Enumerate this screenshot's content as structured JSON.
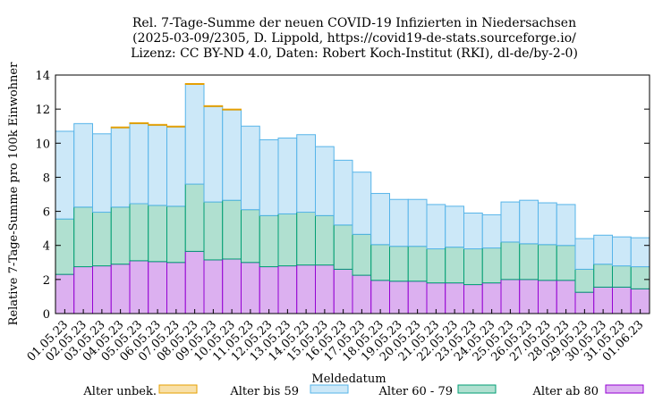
{
  "chart_data": {
    "type": "bar",
    "stacked": true,
    "title": [
      "Rel. 7-Tage-Summe der neuen COVID-19 Infizierten in Niedersachsen",
      "(2025-03-09/2305, D. Lippold, https://covid19-de-stats.sourceforge.io/",
      "Lizenz: CC BY-ND 4.0, Daten: Robert Koch-Institut (RKI), dl-de/by-2-0)"
    ],
    "xlabel": "Meldedatum",
    "ylabel": "Relative 7-Tage-Summe pro 100k Einwohner",
    "ylim": [
      0,
      14
    ],
    "yticks": [
      0,
      2,
      4,
      6,
      8,
      10,
      12,
      14
    ],
    "grid": false,
    "legend_position": "bottom",
    "categories": [
      "01.05.23",
      "02.05.23",
      "03.05.23",
      "04.05.23",
      "05.05.23",
      "06.05.23",
      "07.05.23",
      "08.05.23",
      "09.05.23",
      "10.05.23",
      "11.05.23",
      "12.05.23",
      "13.05.23",
      "14.05.23",
      "15.05.23",
      "16.05.23",
      "17.05.23",
      "18.05.23",
      "19.05.23",
      "20.05.23",
      "21.05.23",
      "22.05.23",
      "23.05.23",
      "24.05.23",
      "25.05.23",
      "26.05.23",
      "27.05.23",
      "28.05.23",
      "29.05.23",
      "30.05.23",
      "31.05.23",
      "01.06.23"
    ],
    "series": [
      {
        "name": "Alter ab 80",
        "color": "#dcb0f0",
        "stroke": "#9400d3",
        "values": [
          2.3,
          2.75,
          2.8,
          2.9,
          3.1,
          3.05,
          3.0,
          3.65,
          3.15,
          3.2,
          3.0,
          2.75,
          2.8,
          2.85,
          2.85,
          2.6,
          2.25,
          1.95,
          1.9,
          1.9,
          1.8,
          1.8,
          1.7,
          1.8,
          2.0,
          2.0,
          1.95,
          1.95,
          1.25,
          1.55,
          1.55,
          1.45
        ]
      },
      {
        "name": "Alter 60 - 79",
        "color": "#b0e0d0",
        "stroke": "#009e73",
        "values": [
          3.25,
          3.5,
          3.15,
          3.35,
          3.35,
          3.3,
          3.3,
          3.95,
          3.4,
          3.45,
          3.1,
          3.0,
          3.05,
          3.1,
          2.9,
          2.6,
          2.4,
          2.1,
          2.05,
          2.05,
          2.0,
          2.1,
          2.1,
          2.05,
          2.2,
          2.1,
          2.1,
          2.05,
          1.35,
          1.35,
          1.25,
          1.3
        ]
      },
      {
        "name": "Alter bis 59",
        "color": "#cce8f8",
        "stroke": "#56b4e9",
        "values": [
          5.15,
          4.9,
          4.6,
          4.65,
          4.7,
          4.7,
          4.65,
          5.85,
          5.6,
          5.3,
          4.9,
          4.45,
          4.45,
          4.55,
          4.05,
          3.8,
          3.65,
          3.0,
          2.75,
          2.75,
          2.6,
          2.4,
          2.1,
          1.95,
          2.35,
          2.55,
          2.45,
          2.4,
          1.8,
          1.7,
          1.7,
          1.7
        ]
      },
      {
        "name": "Alter unbek.",
        "color": "#f8e0a8",
        "stroke": "#e69f00",
        "values": [
          0,
          0,
          0,
          0.05,
          0.05,
          0.05,
          0.05,
          0.05,
          0.05,
          0.05,
          0,
          0,
          0,
          0,
          0,
          0,
          0,
          0,
          0,
          0,
          0,
          0,
          0,
          0,
          0,
          0,
          0,
          0,
          0,
          0,
          0,
          0
        ]
      }
    ],
    "legend_order": [
      "Alter unbek.",
      "Alter bis 59",
      "Alter 60 - 79",
      "Alter ab 80"
    ]
  }
}
